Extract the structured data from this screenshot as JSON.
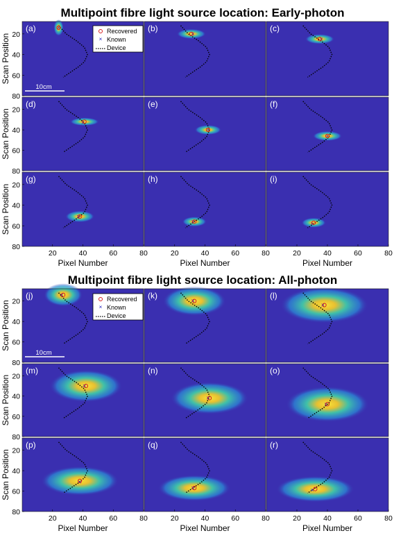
{
  "figures": [
    {
      "title": "Multipoint fibre light source location: Early-photon",
      "panel_labels": [
        "(a)",
        "(b)",
        "(c)",
        "(d)",
        "(e)",
        "(f)",
        "(g)",
        "(h)",
        "(i)"
      ],
      "ylabel": "Scan Position",
      "xlabel": "Pixel Number",
      "scale_bar": "10cm"
    },
    {
      "title": "Multipoint fibre light source location: All-photon",
      "panel_labels": [
        "(j)",
        "(k)",
        "(l)",
        "(m)",
        "(n)",
        "(o)",
        "(p)",
        "(q)",
        "(r)"
      ],
      "ylabel": "Scan Position",
      "xlabel": "Pixel Number",
      "scale_bar": "10cm"
    }
  ],
  "legend": {
    "recovered": "Recovered",
    "known": "Known",
    "device": "Device"
  },
  "colors": {
    "background": "#3a2fb0",
    "device": "#000000",
    "recovered": "#d62020",
    "known": "#2020c0",
    "hot": "#f0e030",
    "warm": "#30c8a0"
  },
  "chart_data": [
    {
      "type": "heatmap",
      "title": "Multipoint fibre light source location: Early-photon",
      "xlabel": "Pixel Number",
      "ylabel": "Scan Position",
      "xlim": [
        0,
        80
      ],
      "ylim": [
        80,
        8
      ],
      "x_ticks": [
        20,
        40,
        60,
        80
      ],
      "y_ticks": [
        20,
        40,
        60,
        80
      ],
      "device_curve": [
        [
          24,
          12
        ],
        [
          29,
          20
        ],
        [
          36,
          27
        ],
        [
          41,
          33
        ],
        [
          43,
          40
        ],
        [
          41,
          47
        ],
        [
          37,
          52
        ],
        [
          32,
          57
        ],
        [
          27,
          62
        ]
      ],
      "panels": [
        {
          "label": "(a)",
          "recovered": [
            24,
            14
          ],
          "known": [
            24,
            14
          ],
          "blob_w": 4,
          "blob_h": 10
        },
        {
          "label": "(b)",
          "recovered": [
            31,
            20
          ],
          "known": [
            32,
            20
          ],
          "blob_w": 12,
          "blob_h": 6
        },
        {
          "label": "(c)",
          "recovered": [
            35,
            25
          ],
          "known": [
            36,
            25
          ],
          "blob_w": 12,
          "blob_h": 6
        },
        {
          "label": "(d)",
          "recovered": [
            41,
            32
          ],
          "known": [
            40,
            33
          ],
          "blob_w": 12,
          "blob_h": 5
        },
        {
          "label": "(e)",
          "recovered": [
            42,
            40
          ],
          "known": [
            42,
            40
          ],
          "blob_w": 11,
          "blob_h": 6
        },
        {
          "label": "(f)",
          "recovered": [
            40,
            46
          ],
          "known": [
            40,
            46
          ],
          "blob_w": 12,
          "blob_h": 6
        },
        {
          "label": "(g)",
          "recovered": [
            38,
            51
          ],
          "known": [
            37,
            51
          ],
          "blob_w": 12,
          "blob_h": 7
        },
        {
          "label": "(h)",
          "recovered": [
            33,
            56
          ],
          "known": [
            32,
            56
          ],
          "blob_w": 10,
          "blob_h": 6
        },
        {
          "label": "(i)",
          "recovered": [
            31,
            57
          ],
          "known": [
            30,
            58
          ],
          "blob_w": 10,
          "blob_h": 6
        }
      ]
    },
    {
      "type": "heatmap",
      "title": "Multipoint fibre light source location: All-photon",
      "xlabel": "Pixel Number",
      "ylabel": "Scan Position",
      "xlim": [
        0,
        80
      ],
      "ylim": [
        80,
        8
      ],
      "x_ticks": [
        20,
        40,
        60,
        80
      ],
      "y_ticks": [
        20,
        40,
        60,
        80
      ],
      "device_curve": [
        [
          24,
          12
        ],
        [
          29,
          20
        ],
        [
          36,
          27
        ],
        [
          41,
          33
        ],
        [
          43,
          40
        ],
        [
          41,
          47
        ],
        [
          37,
          52
        ],
        [
          32,
          57
        ],
        [
          27,
          62
        ]
      ],
      "panels": [
        {
          "label": "(j)",
          "recovered": [
            27,
            14
          ],
          "known": [
            26,
            14
          ],
          "blob_w": 16,
          "blob_h": 14
        },
        {
          "label": "(k)",
          "recovered": [
            33,
            20
          ],
          "known": [
            32,
            20
          ],
          "blob_w": 26,
          "blob_h": 18
        },
        {
          "label": "(l)",
          "recovered": [
            38,
            24
          ],
          "known": [
            37,
            24
          ],
          "blob_w": 36,
          "blob_h": 22
        },
        {
          "label": "(m)",
          "recovered": [
            42,
            30
          ],
          "known": [
            41,
            30
          ],
          "blob_w": 30,
          "blob_h": 20
        },
        {
          "label": "(n)",
          "recovered": [
            43,
            42
          ],
          "known": [
            42,
            42
          ],
          "blob_w": 32,
          "blob_h": 20
        },
        {
          "label": "(o)",
          "recovered": [
            40,
            48
          ],
          "known": [
            39,
            48
          ],
          "blob_w": 34,
          "blob_h": 22
        },
        {
          "label": "(p)",
          "recovered": [
            38,
            50
          ],
          "known": [
            38,
            51
          ],
          "blob_w": 32,
          "blob_h": 18
        },
        {
          "label": "(q)",
          "recovered": [
            33,
            57
          ],
          "known": [
            32,
            57
          ],
          "blob_w": 30,
          "blob_h": 16
        },
        {
          "label": "(r)",
          "recovered": [
            32,
            58
          ],
          "known": [
            30,
            59
          ],
          "blob_w": 32,
          "blob_h": 16
        }
      ]
    }
  ]
}
